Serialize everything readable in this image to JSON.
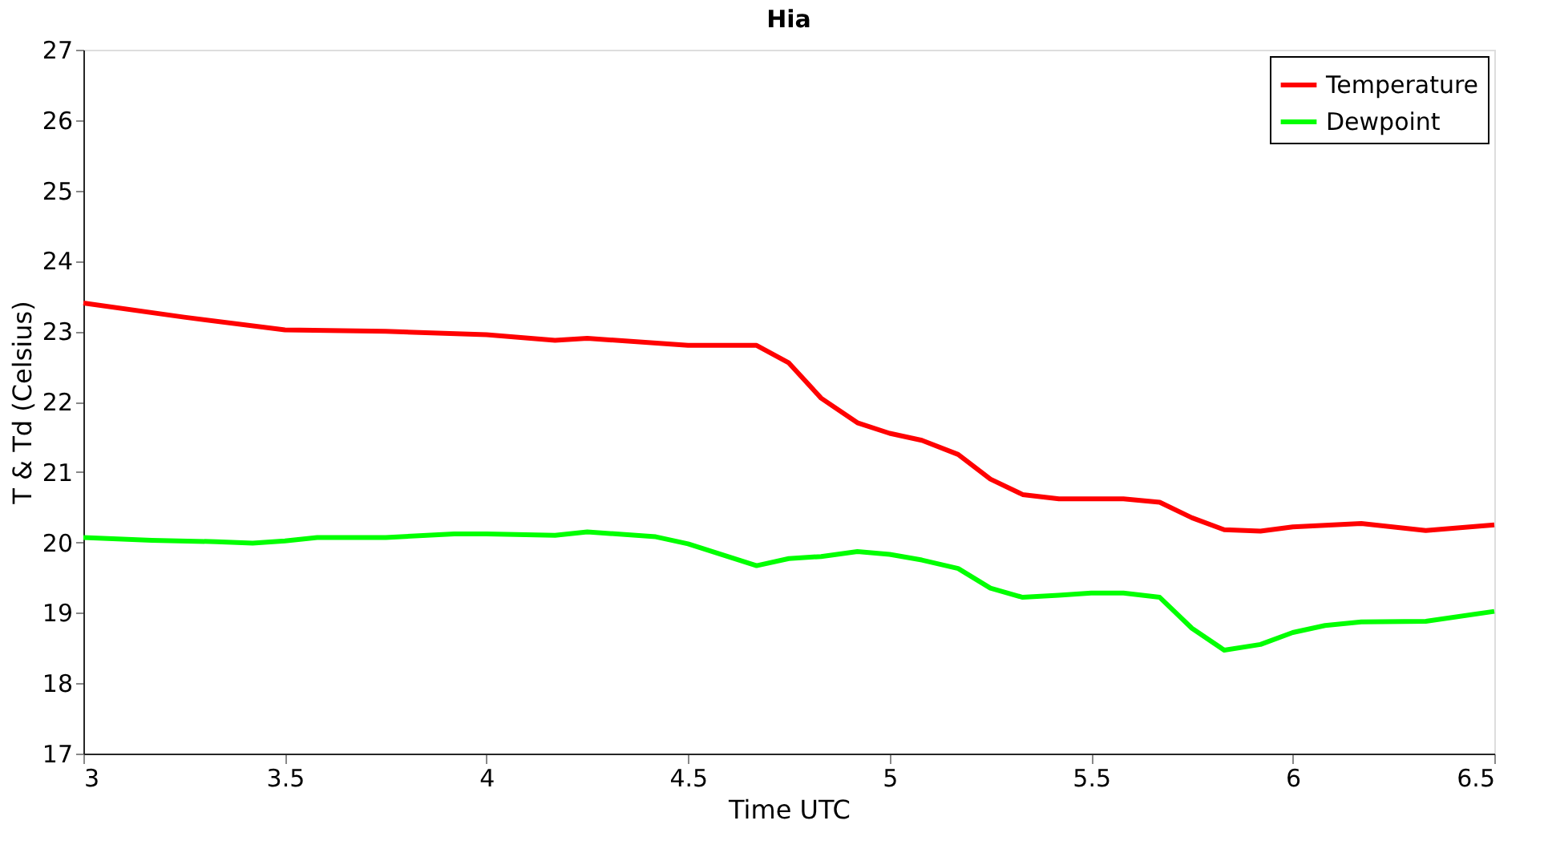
{
  "chart_data": {
    "type": "line",
    "title": "Hia",
    "xlabel": "Time UTC",
    "ylabel": "T & Td (Celsius)",
    "x": [
      3,
      3.25,
      3.5,
      3.75,
      4.0,
      4.17,
      4.25,
      4.5,
      4.67,
      4.75,
      4.83,
      4.92,
      5.0,
      5.08,
      5.17,
      5.25,
      5.33,
      5.42,
      5.5,
      5.58,
      5.67,
      5.75,
      5.83,
      5.92,
      6.0,
      6.17,
      6.33,
      6.5
    ],
    "series": [
      {
        "name": "Temperature",
        "color": "#ff0000",
        "values": [
          23.4,
          23.2,
          23.02,
          23.0,
          22.95,
          22.87,
          22.9,
          22.8,
          22.8,
          22.55,
          22.05,
          21.7,
          21.55,
          21.45,
          21.25,
          20.9,
          20.68,
          20.62,
          20.62,
          20.62,
          20.57,
          20.35,
          20.18,
          20.16,
          20.22,
          20.27,
          20.17,
          20.25
        ]
      },
      {
        "name": "Dewpoint",
        "color": "#00ff00",
        "x": [
          3,
          3.17,
          3.33,
          3.42,
          3.5,
          3.58,
          3.75,
          3.92,
          4.0,
          4.17,
          4.25,
          4.42,
          4.5,
          4.67,
          4.75,
          4.83,
          4.92,
          5.0,
          5.08,
          5.17,
          5.25,
          5.33,
          5.42,
          5.5,
          5.58,
          5.67,
          5.75,
          5.83,
          5.92,
          6.0,
          6.08,
          6.17,
          6.33,
          6.5
        ],
        "values": [
          20.07,
          20.03,
          20.01,
          19.99,
          20.02,
          20.07,
          20.07,
          20.12,
          20.12,
          20.1,
          20.15,
          20.08,
          19.98,
          19.67,
          19.77,
          19.8,
          19.87,
          19.83,
          19.75,
          19.63,
          19.35,
          19.22,
          19.25,
          19.28,
          19.28,
          19.22,
          18.78,
          18.47,
          18.55,
          18.72,
          18.82,
          18.87,
          18.88,
          19.02
        ]
      }
    ],
    "xlim": [
      3,
      6.5
    ],
    "xticks": [
      3,
      3.5,
      4,
      4.5,
      5,
      5.5,
      6,
      6.5
    ],
    "ylim": [
      17,
      27
    ],
    "yticks": [
      17,
      18,
      19,
      20,
      21,
      22,
      23,
      24,
      25,
      26,
      27
    ],
    "grid": false,
    "legend": "top right",
    "line_style": "solid",
    "marker": "none"
  }
}
